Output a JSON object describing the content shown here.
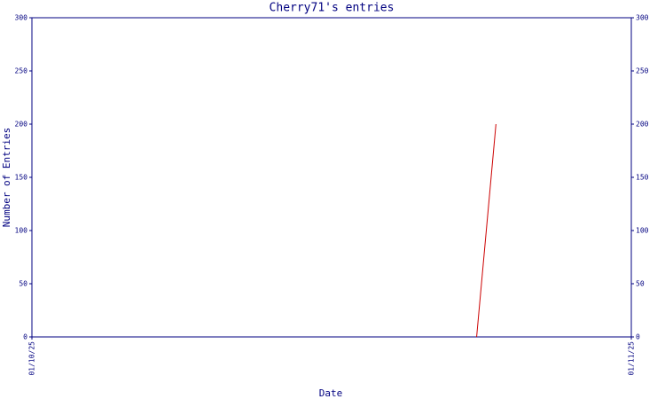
{
  "chart_data": {
    "type": "line",
    "title": "Cherry71's entries",
    "x_label": "Date",
    "y_label": "Number of Entries",
    "x": [
      "24/10/25",
      "25/10/25"
    ],
    "series": [
      {
        "name": "Cherry71",
        "color": "#cc0000",
        "values": [
          0,
          200
        ]
      }
    ],
    "xlim": [
      "01/10/25",
      "01/11/25"
    ],
    "xticks": [
      "01/10/25",
      "01/11/25"
    ],
    "ylim": [
      0,
      300
    ],
    "yticks": [
      0,
      50,
      100,
      150,
      200,
      250,
      300
    ]
  }
}
